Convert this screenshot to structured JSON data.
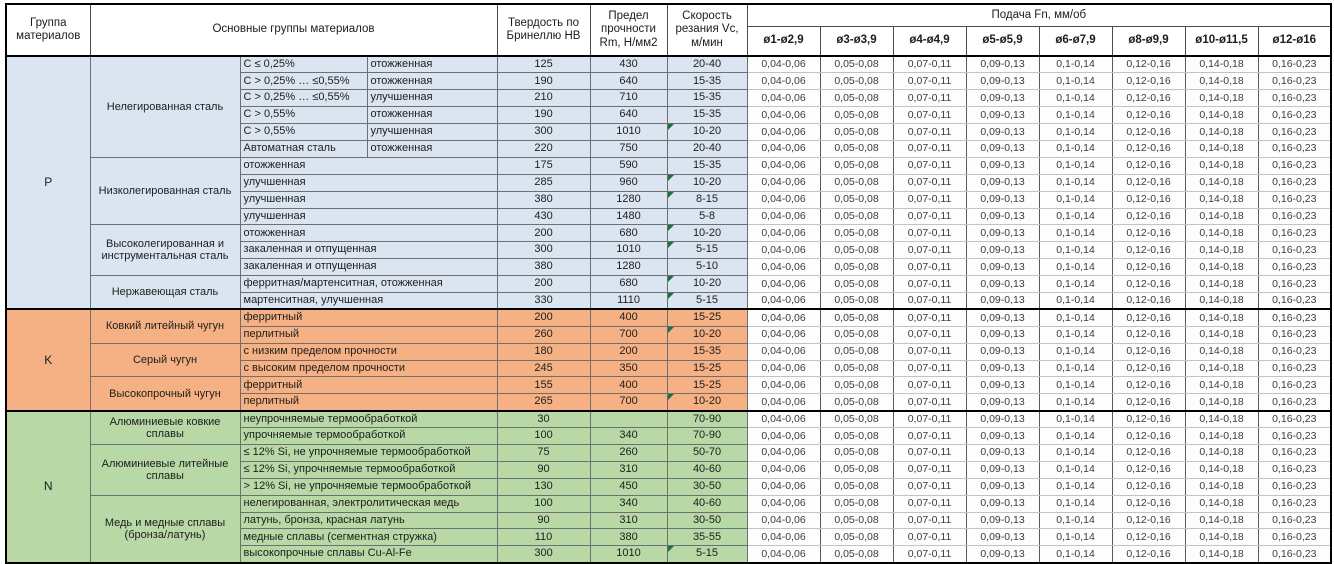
{
  "table": {
    "header": {
      "group": "Группа материалов",
      "main_groups": "Основные группы материалов",
      "hardness": "Твердость по Бринеллю HB",
      "strength": "Предел прочности Rm, Н/мм2",
      "speed": "Скорость резания Vc, м/мин",
      "feed": "Подача Fn, мм/об",
      "feed_cols": [
        "ø1-ø2,9",
        "ø3-ø3,9",
        "ø4-ø4,9",
        "ø5-ø5,9",
        "ø6-ø7,9",
        "ø8-ø9,9",
        "ø10-ø11,5",
        "ø12-ø16"
      ]
    },
    "feed_values": [
      "0,04-0,06",
      "0,05-0,08",
      "0,07-0,11",
      "0,09-0,13",
      "0,1-0,14",
      "0,12-0,16",
      "0,14-0,18",
      "0,16-0,23"
    ],
    "flag_color": "#1e6f42",
    "groups": [
      {
        "code": "P",
        "color": "#dbe5f1",
        "subgroups": [
          {
            "name": "Нелегированная сталь",
            "rows": [
              {
                "c1": "C ≤ 0,25%",
                "c2": "отожженная",
                "hb": "125",
                "rm": "430",
                "vc": "20-40",
                "flag": false
              },
              {
                "c1": "C > 0,25% … ≤0,55%",
                "c2": "отожженная",
                "hb": "190",
                "rm": "640",
                "vc": "15-35",
                "flag": false
              },
              {
                "c1": "C > 0,25% … ≤0,55%",
                "c2": "улучшенная",
                "hb": "210",
                "rm": "710",
                "vc": "15-35",
                "flag": false
              },
              {
                "c1": "C > 0,55%",
                "c2": "отожженная",
                "hb": "190",
                "rm": "640",
                "vc": "15-35",
                "flag": false
              },
              {
                "c1": "C > 0,55%",
                "c2": "улучшенная",
                "hb": "300",
                "rm": "1010",
                "vc": "10-20",
                "flag": true
              },
              {
                "c1": "Автоматная сталь",
                "c2": "отожженная",
                "hb": "220",
                "rm": "750",
                "vc": "20-40",
                "flag": false
              }
            ]
          },
          {
            "name": "Низколегированная сталь",
            "rows": [
              {
                "c1": "отожженная",
                "hb": "175",
                "rm": "590",
                "vc": "15-35",
                "flag": false
              },
              {
                "c1": "улучшенная",
                "hb": "285",
                "rm": "960",
                "vc": "10-20",
                "flag": true
              },
              {
                "c1": "улучшенная",
                "hb": "380",
                "rm": "1280",
                "vc": "8-15",
                "flag": true
              },
              {
                "c1": "улучшенная",
                "hb": "430",
                "rm": "1480",
                "vc": "5-8",
                "flag": false
              }
            ]
          },
          {
            "name": "Высоколегированная и инструментальная сталь",
            "rows": [
              {
                "c1": "отожженная",
                "hb": "200",
                "rm": "680",
                "vc": "10-20",
                "flag": true
              },
              {
                "c1": "закаленная и отпущенная",
                "hb": "300",
                "rm": "1010",
                "vc": "5-15",
                "flag": true
              },
              {
                "c1": "закаленная и отпущенная",
                "hb": "380",
                "rm": "1280",
                "vc": "5-10",
                "flag": false
              }
            ]
          },
          {
            "name": "Нержавеющая сталь",
            "rows": [
              {
                "c1": "ферритная/мартенситная, отожженная",
                "hb": "200",
                "rm": "680",
                "vc": "10-20",
                "flag": true
              },
              {
                "c1": "мартенситная, улучшенная",
                "hb": "330",
                "rm": "1110",
                "vc": "5-15",
                "flag": true
              }
            ]
          }
        ]
      },
      {
        "code": "K",
        "color": "#f5b183",
        "subgroups": [
          {
            "name": "Ковкий литейный чугун",
            "rows": [
              {
                "c1": "ферритный",
                "hb": "200",
                "rm": "400",
                "vc": "15-25",
                "flag": false
              },
              {
                "c1": "перлитный",
                "hb": "260",
                "rm": "700",
                "vc": "10-20",
                "flag": true
              }
            ]
          },
          {
            "name": "Серый чугун",
            "rows": [
              {
                "c1": "с низким пределом прочности",
                "hb": "180",
                "rm": "200",
                "vc": "15-35",
                "flag": false
              },
              {
                "c1": "с высоким пределом прочности",
                "hb": "245",
                "rm": "350",
                "vc": "15-25",
                "flag": false
              }
            ]
          },
          {
            "name": "Высокопрочный чугун",
            "rows": [
              {
                "c1": "ферритный",
                "hb": "155",
                "rm": "400",
                "vc": "15-25",
                "flag": false
              },
              {
                "c1": "перлитный",
                "hb": "265",
                "rm": "700",
                "vc": "10-20",
                "flag": true
              }
            ]
          }
        ]
      },
      {
        "code": "N",
        "color": "#b8d8a6",
        "subgroups": [
          {
            "name": "Алюминиевые ковкие сплавы",
            "rows": [
              {
                "c1": "неупрочняемые термообработкой",
                "hb": "30",
                "rm": "",
                "vc": "70-90",
                "flag": false
              },
              {
                "c1": "упрочняемые термообработкой",
                "hb": "100",
                "rm": "340",
                "vc": "70-90",
                "flag": false
              }
            ]
          },
          {
            "name": "Алюминиевые литейные сплавы",
            "rows": [
              {
                "c1": "≤ 12% Si, не упрочняемые термообработкой",
                "hb": "75",
                "rm": "260",
                "vc": "50-70",
                "flag": false
              },
              {
                "c1": "≤ 12% Si, упрочняемые термообработкой",
                "hb": "90",
                "rm": "310",
                "vc": "40-60",
                "flag": false
              },
              {
                "c1": "> 12% Si, не упрочняемые термообработкой",
                "hb": "130",
                "rm": "450",
                "vc": "30-50",
                "flag": false
              }
            ]
          },
          {
            "name": "Медь и медные сплавы (бронза/латунь)",
            "rows": [
              {
                "c1": "нелегированная, электролитическая медь",
                "hb": "100",
                "rm": "340",
                "vc": "40-60",
                "flag": false
              },
              {
                "c1": "латунь, бронза, красная латунь",
                "hb": "90",
                "rm": "310",
                "vc": "30-50",
                "flag": false
              },
              {
                "c1": "медные сплавы (сегментная стружка)",
                "hb": "110",
                "rm": "380",
                "vc": "35-55",
                "flag": false
              },
              {
                "c1": "высокопрочные сплавы Cu-Al-Fe",
                "hb": "300",
                "rm": "1010",
                "vc": "5-15",
                "flag": true
              }
            ]
          }
        ]
      }
    ]
  }
}
